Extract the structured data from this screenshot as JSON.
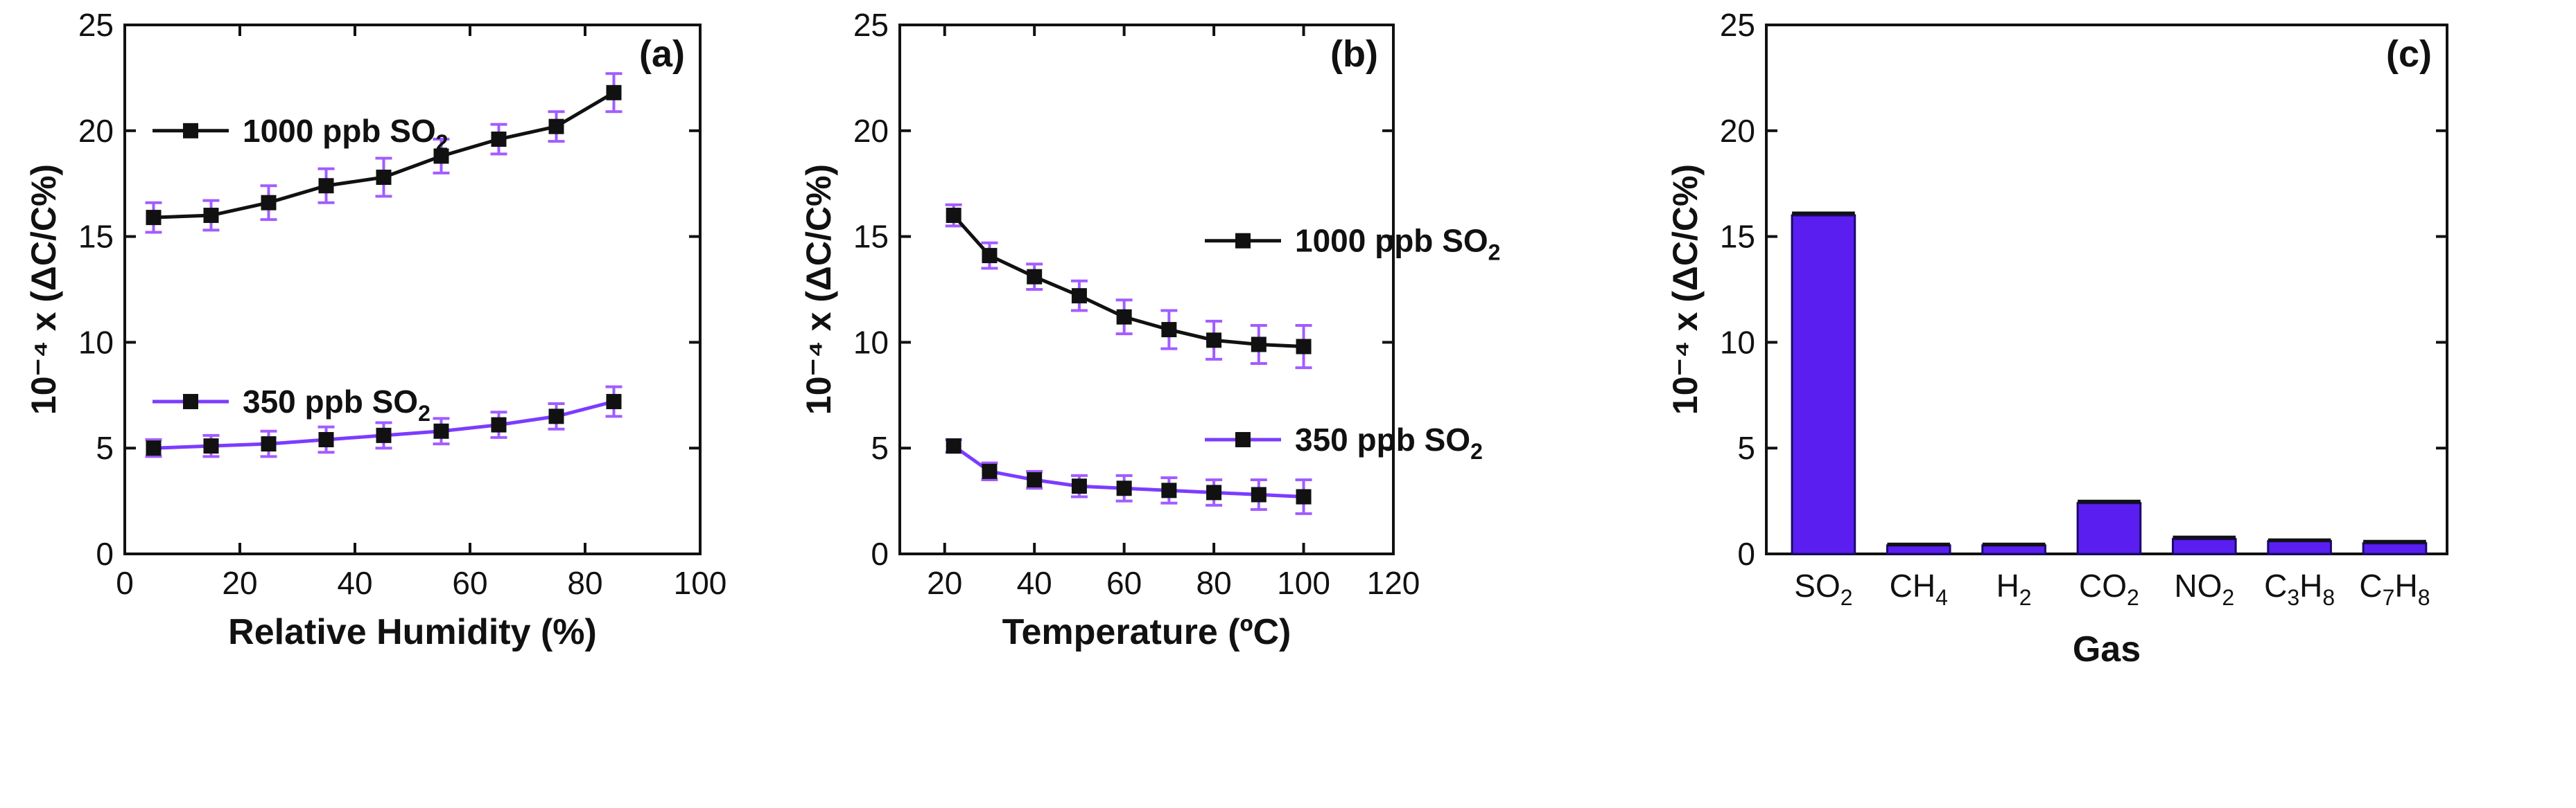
{
  "chart_data": [
    {
      "type": "line",
      "panel_label": "(a)",
      "xlabel": "Relative Humidity (%)",
      "ylabel": "10⁻⁴ x (ΔC/C%)",
      "xlim": [
        0,
        100
      ],
      "ylim": [
        0,
        25
      ],
      "xticks": [
        0,
        20,
        40,
        60,
        80,
        100
      ],
      "yticks": [
        0,
        5,
        10,
        15,
        20,
        25
      ],
      "x": [
        5,
        15,
        25,
        35,
        45,
        55,
        65,
        75,
        85
      ],
      "series": [
        {
          "name": "1000 ppb SO2",
          "legend_main": "1000 ppb SO",
          "legend_sub": "2",
          "color": "#111111",
          "marker": "#111111",
          "values": [
            15.9,
            16.0,
            16.6,
            17.4,
            17.8,
            18.8,
            19.6,
            20.2,
            21.8
          ],
          "errors": [
            0.7,
            0.7,
            0.8,
            0.8,
            0.9,
            0.8,
            0.7,
            0.7,
            0.9
          ]
        },
        {
          "name": "350 ppb SO2",
          "legend_main": "350 ppb SO",
          "legend_sub": "2",
          "color": "#7b3cff",
          "marker": "#111111",
          "values": [
            5.0,
            5.1,
            5.2,
            5.4,
            5.6,
            5.8,
            6.1,
            6.5,
            7.2
          ],
          "errors": [
            0.4,
            0.5,
            0.6,
            0.6,
            0.6,
            0.6,
            0.6,
            0.6,
            0.7
          ]
        }
      ],
      "legend_position": "upper-left"
    },
    {
      "type": "line",
      "panel_label": "(b)",
      "xlabel": "Temperature (ºC)",
      "ylabel": "10⁻⁴ x (ΔC/C%)",
      "xlim": [
        10,
        120
      ],
      "ylim": [
        0,
        25
      ],
      "xticks": [
        20,
        40,
        60,
        80,
        100,
        120
      ],
      "yticks": [
        0,
        5,
        10,
        15,
        20,
        25
      ],
      "x": [
        22,
        30,
        40,
        50,
        60,
        70,
        80,
        90,
        100
      ],
      "series": [
        {
          "name": "1000 ppb SO2",
          "legend_main": "1000 ppb SO",
          "legend_sub": "2",
          "color": "#111111",
          "marker": "#111111",
          "values": [
            16.0,
            14.1,
            13.1,
            12.2,
            11.2,
            10.6,
            10.1,
            9.9,
            9.8
          ],
          "errors": [
            0.5,
            0.6,
            0.6,
            0.7,
            0.8,
            0.9,
            0.9,
            0.9,
            1.0
          ]
        },
        {
          "name": "350 ppb SO2",
          "legend_main": "350 ppb SO",
          "legend_sub": "2",
          "color": "#7b3cff",
          "marker": "#111111",
          "values": [
            5.1,
            3.9,
            3.5,
            3.2,
            3.1,
            3.0,
            2.9,
            2.8,
            2.7
          ],
          "errors": [
            0.3,
            0.4,
            0.4,
            0.5,
            0.6,
            0.6,
            0.6,
            0.7,
            0.8
          ]
        }
      ],
      "legend_position": "right"
    },
    {
      "type": "bar",
      "panel_label": "(c)",
      "xlabel": "Gas",
      "ylabel": "10⁻⁴ x (ΔC/C%)",
      "ylim": [
        0,
        25
      ],
      "yticks": [
        0,
        5,
        10,
        15,
        20,
        25
      ],
      "categories": [
        {
          "main": "SO",
          "sub": "2"
        },
        {
          "main": "CH",
          "sub": "4"
        },
        {
          "main": "H",
          "sub": "2"
        },
        {
          "main": "CO",
          "sub": "2"
        },
        {
          "main": "NO",
          "sub": "2"
        },
        {
          "main": "C",
          "sub": "3",
          "main2": "H",
          "sub2": "8"
        },
        {
          "main": "C",
          "sub": "7",
          "main2": "H",
          "sub2": "8"
        }
      ],
      "values": [
        16.0,
        0.4,
        0.4,
        2.4,
        0.7,
        0.6,
        0.5
      ],
      "errors": [
        0.1,
        0.05,
        0.05,
        0.08,
        0.08,
        0.05,
        0.08
      ],
      "bar_color": "#5a1ff0"
    }
  ]
}
